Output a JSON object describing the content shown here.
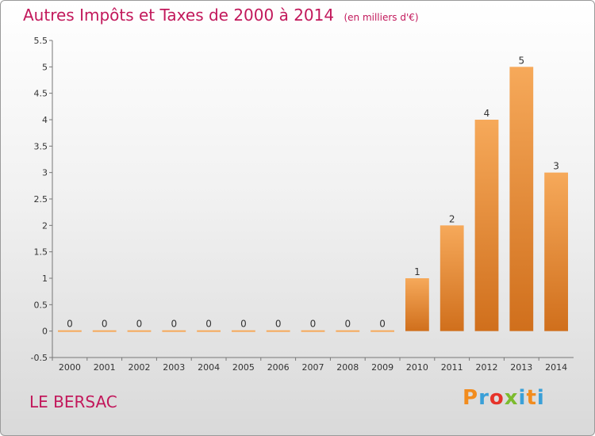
{
  "header": {
    "title": "Autres Impôts et Taxes de 2000 à 2014",
    "subtitle": "(en milliers d'€)"
  },
  "footer": {
    "place": "LE BERSAC",
    "logo": [
      "P",
      "r",
      "o",
      "x",
      "i",
      "t",
      "i"
    ]
  },
  "colors": {
    "title": "#c2185b",
    "bar_light": "#f6a95a",
    "bar_dark": "#d06f1c",
    "logo": [
      "#f28c1e",
      "#3aa0d8",
      "#e6332a",
      "#7cbb2e",
      "#3aa0d8",
      "#f28c1e",
      "#3aa0d8"
    ]
  },
  "chart_data": {
    "type": "bar",
    "title": "Autres Impôts et Taxes de 2000 à 2014",
    "subtitle": "(en milliers d'€)",
    "categories": [
      "2000",
      "2001",
      "2002",
      "2003",
      "2004",
      "2005",
      "2006",
      "2007",
      "2008",
      "2009",
      "2010",
      "2011",
      "2012",
      "2013",
      "2014"
    ],
    "values": [
      0,
      0,
      0,
      0,
      0,
      0,
      0,
      0,
      0,
      0,
      1,
      2,
      4,
      5,
      3
    ],
    "data_labels": [
      "0",
      "0",
      "0",
      "0",
      "0",
      "0",
      "0",
      "0",
      "0",
      "0",
      "1",
      "2",
      "4",
      "5",
      "3"
    ],
    "ylim": [
      -0.5,
      5.5
    ],
    "yticks": [
      "-0.5",
      "0",
      "0.5",
      "1",
      "1.5",
      "2",
      "2.5",
      "3",
      "3.5",
      "4",
      "4.5",
      "5",
      "5.5"
    ],
    "grid": false,
    "legend": "none"
  }
}
